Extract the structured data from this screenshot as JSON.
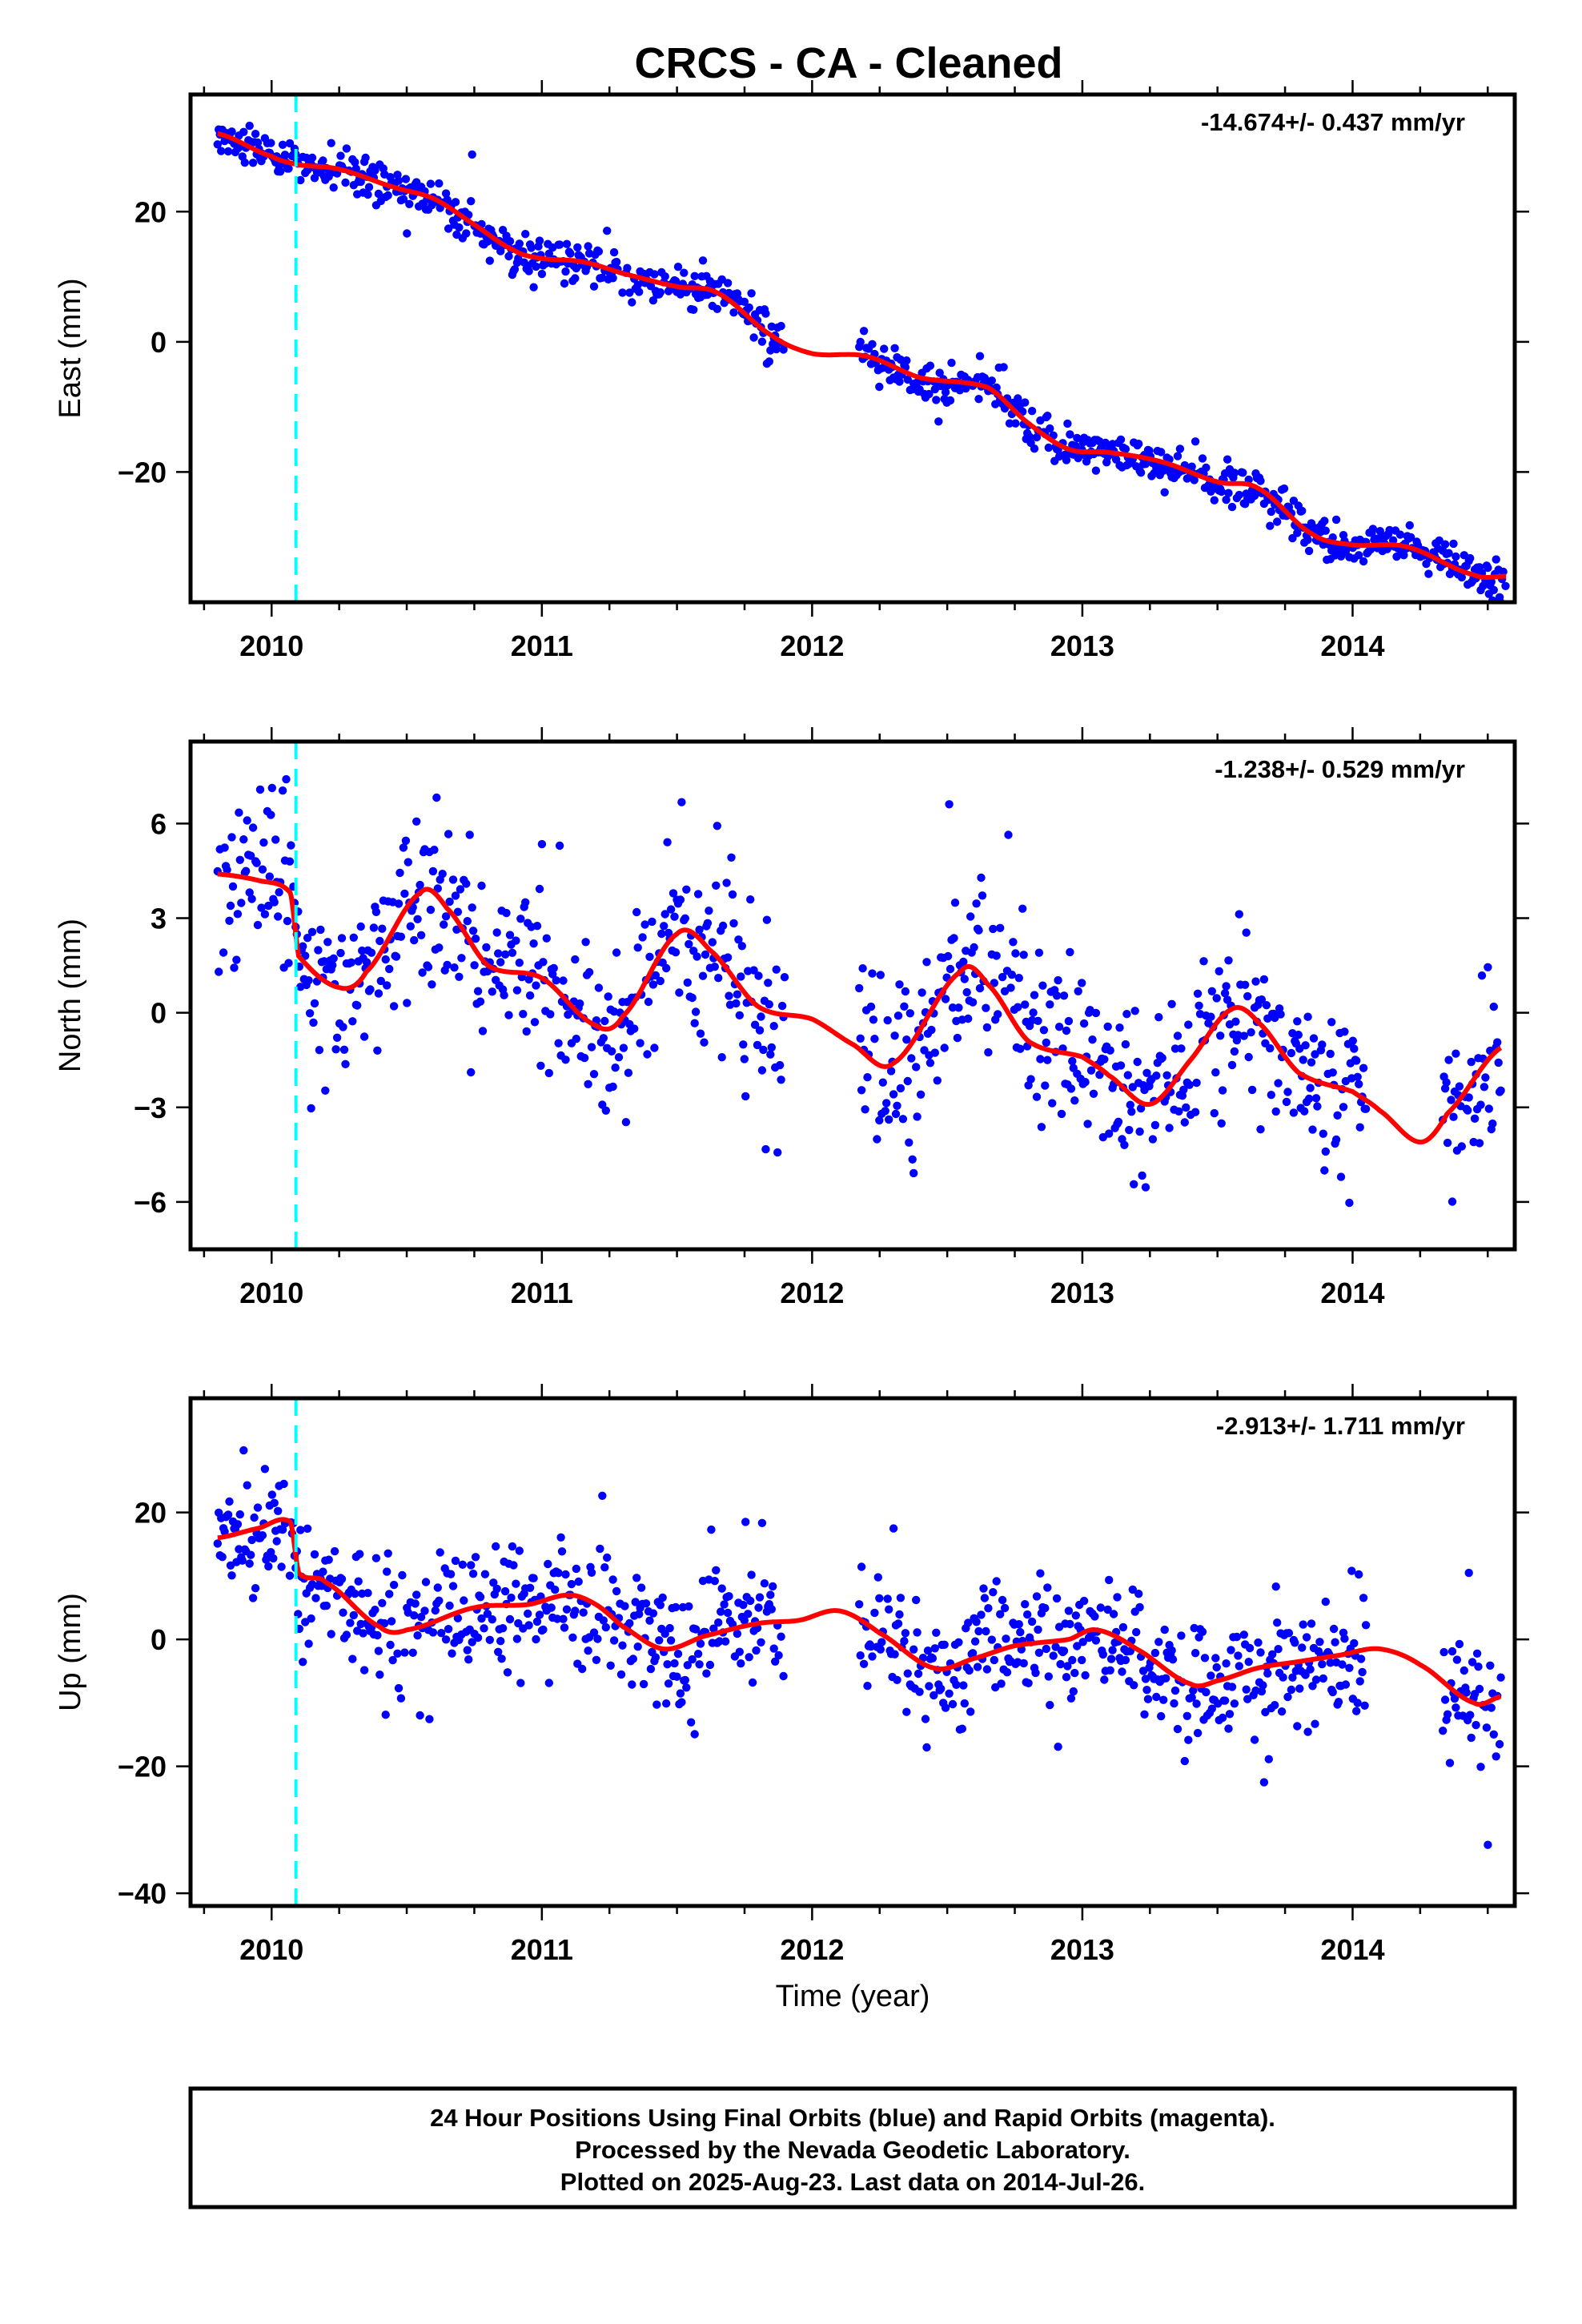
{
  "title": "CRCS  - CA - Cleaned",
  "footer": {
    "lines": [
      "24 Hour Positions Using Final Orbits (blue) and Rapid Orbits (magenta).",
      "Processed by the Nevada Geodetic Laboratory.",
      "Plotted on 2025-Aug-23. Last data on 2014-Jul-26."
    ]
  },
  "chart_data": [
    {
      "type": "scatter",
      "panel": "east",
      "ylabel": "East (mm)",
      "xlabel": "",
      "rate_label": "-14.674+/- 0.437 mm/yr",
      "xlim": [
        2009.7,
        2014.6
      ],
      "ylim": [
        -40,
        38
      ],
      "x_ticks": [
        2010,
        2011,
        2012,
        2013,
        2014
      ],
      "y_ticks": [
        -20,
        0,
        20
      ],
      "equipment_change_x": 2010.09,
      "point_color": "#0000ff",
      "fit_color": "#ff0000",
      "marker_color": "#00ffff",
      "gaps": [
        [
          2011.9,
          2012.17
        ]
      ],
      "noise_mm": 1.6,
      "model_knots": [
        [
          2009.8,
          32
        ],
        [
          2010.0,
          28.5
        ],
        [
          2010.1,
          27.2
        ],
        [
          2010.25,
          26.5
        ],
        [
          2010.45,
          23.8
        ],
        [
          2010.6,
          22
        ],
        [
          2010.75,
          18
        ],
        [
          2010.9,
          14
        ],
        [
          2011.0,
          12.8
        ],
        [
          2011.15,
          12.3
        ],
        [
          2011.3,
          10.5
        ],
        [
          2011.5,
          8.5
        ],
        [
          2011.65,
          7.5
        ],
        [
          2011.85,
          1.0
        ],
        [
          2012.0,
          -1.8
        ],
        [
          2012.2,
          -2.2
        ],
        [
          2012.4,
          -5.5
        ],
        [
          2012.65,
          -7.0
        ],
        [
          2012.8,
          -12.5
        ],
        [
          2012.95,
          -16.5
        ],
        [
          2013.1,
          -17.0
        ],
        [
          2013.3,
          -18.5
        ],
        [
          2013.5,
          -21.5
        ],
        [
          2013.65,
          -22.5
        ],
        [
          2013.85,
          -29.5
        ],
        [
          2014.0,
          -31.2
        ],
        [
          2014.2,
          -31.5
        ],
        [
          2014.45,
          -35.8
        ],
        [
          2014.57,
          -36.0
        ]
      ]
    },
    {
      "type": "scatter",
      "panel": "north",
      "ylabel": "North (mm)",
      "xlabel": "",
      "rate_label": "-1.238+/- 0.529 mm/yr",
      "xlim": [
        2009.7,
        2014.6
      ],
      "ylim": [
        -7.5,
        8.6
      ],
      "x_ticks": [
        2010,
        2011,
        2012,
        2013,
        2014
      ],
      "y_ticks": [
        -6,
        -3,
        0,
        3,
        6
      ],
      "equipment_change_x": 2010.09,
      "point_color": "#0000ff",
      "fit_color": "#ff0000",
      "marker_color": "#00ffff",
      "gaps": [
        [
          2011.9,
          2012.17
        ],
        [
          2014.05,
          2014.33
        ]
      ],
      "noise_mm": 1.4,
      "model_knots": [
        [
          2009.8,
          4.4
        ],
        [
          2009.95,
          4.2
        ],
        [
          2010.07,
          3.8
        ],
        [
          2010.1,
          1.8
        ],
        [
          2010.25,
          0.8
        ],
        [
          2010.35,
          1.3
        ],
        [
          2010.55,
          3.8
        ],
        [
          2010.65,
          3.3
        ],
        [
          2010.8,
          1.5
        ],
        [
          2011.0,
          1.1
        ],
        [
          2011.2,
          -0.4
        ],
        [
          2011.3,
          -0.1
        ],
        [
          2011.5,
          2.5
        ],
        [
          2011.62,
          2.0
        ],
        [
          2011.8,
          0.2
        ],
        [
          2012.0,
          -0.2
        ],
        [
          2012.15,
          -1.0
        ],
        [
          2012.3,
          -1.6
        ],
        [
          2012.55,
          1.3
        ],
        [
          2012.65,
          0.9
        ],
        [
          2012.8,
          -0.9
        ],
        [
          2013.0,
          -1.4
        ],
        [
          2013.1,
          -2.0
        ],
        [
          2013.25,
          -2.9
        ],
        [
          2013.4,
          -1.5
        ],
        [
          2013.55,
          0.1
        ],
        [
          2013.65,
          -0.3
        ],
        [
          2013.8,
          -1.9
        ],
        [
          2014.0,
          -2.5
        ],
        [
          2014.1,
          -3.1
        ],
        [
          2014.25,
          -4.1
        ],
        [
          2014.35,
          -3.2
        ],
        [
          2014.55,
          -1.1
        ]
      ]
    },
    {
      "type": "scatter",
      "panel": "up",
      "ylabel": "Up (mm)",
      "xlabel": "Time (year)",
      "rate_label": "-2.913+/- 1.711 mm/yr",
      "xlim": [
        2009.7,
        2014.6
      ],
      "ylim": [
        -42,
        38
      ],
      "x_ticks": [
        2010,
        2011,
        2012,
        2013,
        2014
      ],
      "y_ticks": [
        -40,
        -20,
        0,
        20
      ],
      "equipment_change_x": 2010.09,
      "point_color": "#0000ff",
      "fit_color": "#ff0000",
      "marker_color": "#00ffff",
      "gaps": [
        [
          2011.9,
          2012.17
        ],
        [
          2014.05,
          2014.33
        ]
      ],
      "noise_mm": 5.0,
      "model_knots": [
        [
          2009.8,
          16
        ],
        [
          2009.95,
          17.5
        ],
        [
          2010.07,
          18.5
        ],
        [
          2010.1,
          10.5
        ],
        [
          2010.2,
          9
        ],
        [
          2010.4,
          2
        ],
        [
          2010.5,
          1.5
        ],
        [
          2010.75,
          5
        ],
        [
          2010.95,
          5.5
        ],
        [
          2011.1,
          7
        ],
        [
          2011.2,
          5.5
        ],
        [
          2011.3,
          2
        ],
        [
          2011.45,
          -1.5
        ],
        [
          2011.6,
          0.5
        ],
        [
          2011.8,
          2.5
        ],
        [
          2011.95,
          3
        ],
        [
          2012.1,
          4.5
        ],
        [
          2012.25,
          1
        ],
        [
          2012.45,
          -4.5
        ],
        [
          2012.6,
          -3
        ],
        [
          2012.75,
          -1
        ],
        [
          2012.95,
          0
        ],
        [
          2013.05,
          1.5
        ],
        [
          2013.2,
          -1.5
        ],
        [
          2013.4,
          -7
        ],
        [
          2013.5,
          -6.5
        ],
        [
          2013.65,
          -4.5
        ],
        [
          2013.8,
          -3.5
        ],
        [
          2013.95,
          -2.5
        ],
        [
          2014.1,
          -1.5
        ],
        [
          2014.25,
          -4
        ],
        [
          2014.45,
          -10
        ],
        [
          2014.55,
          -9
        ]
      ]
    }
  ]
}
